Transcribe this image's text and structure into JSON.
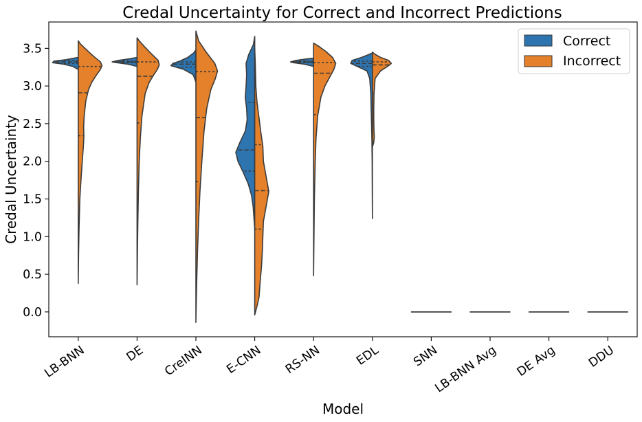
{
  "chart_data": {
    "type": "violin",
    "split": true,
    "title": "Credal Uncertainty for Correct and Incorrect Predictions",
    "xlabel": "Model",
    "ylabel": "Credal Uncertainty",
    "ylim": [
      -0.33,
      3.85
    ],
    "yticks": [
      0.0,
      0.5,
      1.0,
      1.5,
      2.0,
      2.5,
      3.0,
      3.5
    ],
    "ytick_labels": [
      "0.0",
      "0.5",
      "1.0",
      "1.5",
      "2.0",
      "2.5",
      "3.0",
      "3.5"
    ],
    "categories": [
      "LB-BNN",
      "DE",
      "CreINN",
      "E-CNN",
      "RS-NN",
      "EDL",
      "SNN",
      "LB-BNN Avg",
      "DE Avg",
      "DDU"
    ],
    "legend": {
      "placement": "top-right",
      "entries": [
        {
          "label": "Correct",
          "color": "#1f77b4"
        },
        {
          "label": "Incorrect",
          "color": "#ff7f0e"
        }
      ]
    },
    "colors": {
      "correct": "#2e75b0",
      "incorrect": "#e4812a",
      "outline": "#3b3b3b"
    },
    "violins": [
      {
        "model": "LB-BNN",
        "correct": {
          "range": [
            3.22,
            3.38
          ],
          "profile": [
            [
              3.22,
              0
            ],
            [
              3.26,
              0.2
            ],
            [
              3.29,
              0.55
            ],
            [
              3.31,
              0.95
            ],
            [
              3.33,
              0.9
            ],
            [
              3.35,
              0.45
            ],
            [
              3.37,
              0.15
            ],
            [
              3.38,
              0
            ]
          ],
          "quartiles": [
            3.3,
            3.32,
            3.34
          ]
        },
        "incorrect": {
          "range": [
            0.38,
            3.6
          ],
          "profile": [
            [
              0.38,
              0
            ],
            [
              0.8,
              0.015
            ],
            [
              1.1,
              0.03
            ],
            [
              1.5,
              0.06
            ],
            [
              1.8,
              0.11
            ],
            [
              2.0,
              0.15
            ],
            [
              2.2,
              0.19
            ],
            [
              2.33,
              0.21
            ],
            [
              2.45,
              0.2
            ],
            [
              2.6,
              0.22
            ],
            [
              2.8,
              0.28
            ],
            [
              2.95,
              0.38
            ],
            [
              3.05,
              0.5
            ],
            [
              3.15,
              0.68
            ],
            [
              3.22,
              0.82
            ],
            [
              3.27,
              0.88
            ],
            [
              3.32,
              0.82
            ],
            [
              3.4,
              0.55
            ],
            [
              3.5,
              0.25
            ],
            [
              3.56,
              0.08
            ],
            [
              3.6,
              0
            ]
          ],
          "quartiles": [
            2.34,
            2.91,
            3.26
          ]
        }
      },
      {
        "model": "DE",
        "correct": {
          "range": [
            3.26,
            3.38
          ],
          "profile": [
            [
              3.26,
              0
            ],
            [
              3.29,
              0.35
            ],
            [
              3.31,
              0.75
            ],
            [
              3.32,
              0.92
            ],
            [
              3.34,
              0.7
            ],
            [
              3.36,
              0.3
            ],
            [
              3.38,
              0
            ]
          ],
          "quartiles": [
            3.31,
            3.32,
            3.33
          ]
        },
        "incorrect": {
          "range": [
            0.36,
            3.64
          ],
          "profile": [
            [
              0.36,
              0
            ],
            [
              0.8,
              0.015
            ],
            [
              1.2,
              0.03
            ],
            [
              1.6,
              0.05
            ],
            [
              2.0,
              0.08
            ],
            [
              2.3,
              0.12
            ],
            [
              2.6,
              0.18
            ],
            [
              2.9,
              0.3
            ],
            [
              3.05,
              0.45
            ],
            [
              3.15,
              0.62
            ],
            [
              3.22,
              0.75
            ],
            [
              3.28,
              0.82
            ],
            [
              3.34,
              0.78
            ],
            [
              3.42,
              0.55
            ],
            [
              3.52,
              0.28
            ],
            [
              3.6,
              0.08
            ],
            [
              3.64,
              0
            ]
          ],
          "quartiles": [
            2.51,
            3.13,
            3.32
          ]
        }
      },
      {
        "model": "CreINN",
        "correct": {
          "range": [
            3.05,
            3.48
          ],
          "profile": [
            [
              3.05,
              0
            ],
            [
              3.15,
              0.1
            ],
            [
              3.22,
              0.45
            ],
            [
              3.27,
              0.92
            ],
            [
              3.3,
              0.85
            ],
            [
              3.33,
              0.6
            ],
            [
              3.38,
              0.3
            ],
            [
              3.44,
              0.08
            ],
            [
              3.48,
              0
            ]
          ],
          "quartiles": [
            3.25,
            3.29,
            3.32
          ]
        },
        "incorrect": {
          "range": [
            -0.14,
            3.73
          ],
          "profile": [
            [
              -0.14,
              0
            ],
            [
              0.1,
              0.012
            ],
            [
              0.4,
              0.03
            ],
            [
              0.8,
              0.06
            ],
            [
              1.2,
              0.1
            ],
            [
              1.6,
              0.15
            ],
            [
              2.0,
              0.22
            ],
            [
              2.4,
              0.3
            ],
            [
              2.7,
              0.4
            ],
            [
              2.95,
              0.55
            ],
            [
              3.1,
              0.72
            ],
            [
              3.2,
              0.8
            ],
            [
              3.3,
              0.7
            ],
            [
              3.45,
              0.38
            ],
            [
              3.6,
              0.1
            ],
            [
              3.73,
              0
            ]
          ],
          "quartiles": [
            1.73,
            2.58,
            3.19
          ]
        }
      },
      {
        "model": "E-CNN",
        "correct": {
          "range": [
            1.1,
            3.66
          ],
          "profile": [
            [
              1.1,
              0
            ],
            [
              1.25,
              0.03
            ],
            [
              1.4,
              0.06
            ],
            [
              1.55,
              0.12
            ],
            [
              1.7,
              0.24
            ],
            [
              1.85,
              0.42
            ],
            [
              2.0,
              0.62
            ],
            [
              2.12,
              0.7
            ],
            [
              2.25,
              0.55
            ],
            [
              2.4,
              0.35
            ],
            [
              2.55,
              0.28
            ],
            [
              2.7,
              0.3
            ],
            [
              2.85,
              0.35
            ],
            [
              3.0,
              0.32
            ],
            [
              3.15,
              0.3
            ],
            [
              3.3,
              0.32
            ],
            [
              3.42,
              0.22
            ],
            [
              3.55,
              0.05
            ],
            [
              3.66,
              0
            ]
          ],
          "quartiles": [
            1.87,
            2.15,
            2.78
          ]
        },
        "incorrect": {
          "range": [
            -0.04,
            3.5
          ],
          "profile": [
            [
              -0.04,
              0
            ],
            [
              0.1,
              0.1
            ],
            [
              0.2,
              0.16
            ],
            [
              0.4,
              0.2
            ],
            [
              0.6,
              0.25
            ],
            [
              0.8,
              0.28
            ],
            [
              1.0,
              0.3
            ],
            [
              1.2,
              0.32
            ],
            [
              1.4,
              0.42
            ],
            [
              1.6,
              0.52
            ],
            [
              1.8,
              0.42
            ],
            [
              2.0,
              0.32
            ],
            [
              2.2,
              0.3
            ],
            [
              2.4,
              0.22
            ],
            [
              2.6,
              0.15
            ],
            [
              2.8,
              0.08
            ],
            [
              3.0,
              0.04
            ],
            [
              3.3,
              0.02
            ],
            [
              3.5,
              0
            ]
          ],
          "quartiles": [
            1.1,
            1.61,
            2.22
          ]
        }
      },
      {
        "model": "RS-NN",
        "correct": {
          "range": [
            3.26,
            3.37
          ],
          "profile": [
            [
              3.26,
              0
            ],
            [
              3.29,
              0.35
            ],
            [
              3.31,
              0.75
            ],
            [
              3.32,
              0.85
            ],
            [
              3.34,
              0.65
            ],
            [
              3.36,
              0.25
            ],
            [
              3.37,
              0
            ]
          ],
          "quartiles": [
            3.31,
            3.32,
            3.33
          ]
        },
        "incorrect": {
          "range": [
            0.48,
            3.57
          ],
          "profile": [
            [
              0.48,
              0
            ],
            [
              1.0,
              0.015
            ],
            [
              1.5,
              0.03
            ],
            [
              2.0,
              0.06
            ],
            [
              2.3,
              0.09
            ],
            [
              2.6,
              0.15
            ],
            [
              2.85,
              0.27
            ],
            [
              3.0,
              0.42
            ],
            [
              3.12,
              0.6
            ],
            [
              3.22,
              0.75
            ],
            [
              3.3,
              0.82
            ],
            [
              3.38,
              0.7
            ],
            [
              3.46,
              0.45
            ],
            [
              3.53,
              0.18
            ],
            [
              3.57,
              0
            ]
          ],
          "quartiles": [
            2.62,
            3.17,
            3.31
          ]
        }
      },
      {
        "model": "EDL",
        "correct": {
          "range": [
            1.24,
            3.44
          ],
          "profile": [
            [
              1.24,
              0
            ],
            [
              1.6,
              0.005
            ],
            [
              2.0,
              0.01
            ],
            [
              2.3,
              0.02
            ],
            [
              2.6,
              0.04
            ],
            [
              2.9,
              0.06
            ],
            [
              3.1,
              0.1
            ],
            [
              3.2,
              0.2
            ],
            [
              3.25,
              0.5
            ],
            [
              3.3,
              0.8
            ],
            [
              3.34,
              0.75
            ],
            [
              3.38,
              0.4
            ],
            [
              3.42,
              0.12
            ],
            [
              3.44,
              0
            ]
          ],
          "quartiles": [
            3.26,
            3.3,
            3.33
          ]
        },
        "incorrect": {
          "range": [
            2.19,
            3.45
          ],
          "profile": [
            [
              2.19,
              0
            ],
            [
              2.25,
              0.05
            ],
            [
              2.32,
              0.07
            ],
            [
              2.4,
              0.06
            ],
            [
              2.55,
              0.05
            ],
            [
              2.7,
              0.05
            ],
            [
              2.9,
              0.06
            ],
            [
              3.1,
              0.1
            ],
            [
              3.2,
              0.3
            ],
            [
              3.27,
              0.6
            ],
            [
              3.3,
              0.7
            ],
            [
              3.34,
              0.6
            ],
            [
              3.38,
              0.3
            ],
            [
              3.42,
              0.1
            ],
            [
              3.45,
              0
            ]
          ],
          "quartiles": [
            2.9,
            3.28,
            3.32
          ]
        }
      },
      {
        "model": "SNN",
        "flat_value": 0.0
      },
      {
        "model": "LB-BNN Avg",
        "flat_value": 0.0
      },
      {
        "model": "DE Avg",
        "flat_value": 0.0
      },
      {
        "model": "DDU",
        "flat_value": 0.0
      }
    ]
  }
}
